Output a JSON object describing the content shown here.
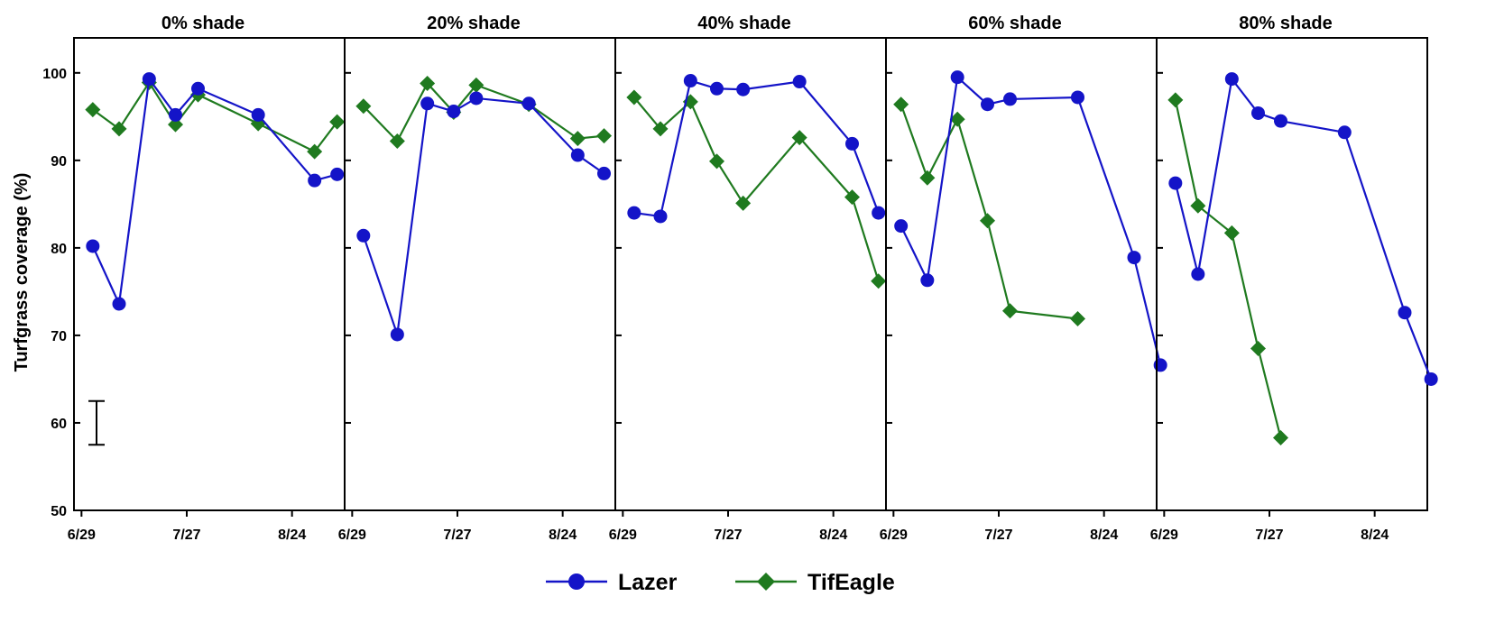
{
  "chart_data": {
    "type": "line",
    "ylabel": "Turfgrass coverage (%)",
    "ylim": [
      50,
      104
    ],
    "yticks": [
      50,
      60,
      70,
      80,
      90,
      100
    ],
    "xticks": [
      "6/29",
      "7/27",
      "8/24"
    ],
    "xlim": [
      "2019-06-27",
      "2019-09-07"
    ],
    "error_bar": {
      "x": "2019-07-03",
      "low": 57.5,
      "high": 62.5
    },
    "colors": {
      "Lazer": "#1414c8",
      "TifEagle": "#1f7a1f"
    },
    "markers": {
      "Lazer": "circle",
      "TifEagle": "diamond"
    },
    "legend": {
      "position": "bottom-center",
      "entries": [
        "Lazer",
        "TifEagle"
      ]
    },
    "panels": [
      {
        "title": "0% shade",
        "series": [
          {
            "name": "Lazer",
            "points": [
              [
                "2019-07-02",
                80.2
              ],
              [
                "2019-07-09",
                73.6
              ],
              [
                "2019-07-17",
                99.3
              ],
              [
                "2019-07-24",
                95.2
              ],
              [
                "2019-07-30",
                98.2
              ],
              [
                "2019-08-15",
                95.2
              ],
              [
                "2019-08-30",
                87.7
              ],
              [
                "2019-09-05",
                88.4
              ]
            ]
          },
          {
            "name": "TifEagle",
            "points": [
              [
                "2019-07-02",
                95.8
              ],
              [
                "2019-07-09",
                93.6
              ],
              [
                "2019-07-17",
                98.9
              ],
              [
                "2019-07-24",
                94.1
              ],
              [
                "2019-07-30",
                97.5
              ],
              [
                "2019-08-15",
                94.2
              ],
              [
                "2019-08-30",
                91.0
              ],
              [
                "2019-09-05",
                94.4
              ]
            ]
          }
        ]
      },
      {
        "title": "20% shade",
        "series": [
          {
            "name": "Lazer",
            "points": [
              [
                "2019-07-02",
                81.4
              ],
              [
                "2019-07-11",
                70.1
              ],
              [
                "2019-07-19",
                96.5
              ],
              [
                "2019-07-26",
                95.6
              ],
              [
                "2019-08-01",
                97.1
              ],
              [
                "2019-08-15",
                96.5
              ],
              [
                "2019-08-28",
                90.6
              ],
              [
                "2019-09-04",
                88.5
              ]
            ]
          },
          {
            "name": "TifEagle",
            "points": [
              [
                "2019-07-02",
                96.2
              ],
              [
                "2019-07-11",
                92.2
              ],
              [
                "2019-07-19",
                98.8
              ],
              [
                "2019-07-26",
                95.5
              ],
              [
                "2019-08-01",
                98.6
              ],
              [
                "2019-08-15",
                96.4
              ],
              [
                "2019-08-28",
                92.5
              ],
              [
                "2019-09-04",
                92.8
              ]
            ]
          }
        ]
      },
      {
        "title": "40% shade",
        "series": [
          {
            "name": "Lazer",
            "points": [
              [
                "2019-07-02",
                84.0
              ],
              [
                "2019-07-09",
                83.6
              ],
              [
                "2019-07-17",
                99.1
              ],
              [
                "2019-07-24",
                98.2
              ],
              [
                "2019-07-31",
                98.1
              ],
              [
                "2019-08-15",
                99.0
              ],
              [
                "2019-08-29",
                91.9
              ],
              [
                "2019-09-05",
                84.0
              ]
            ]
          },
          {
            "name": "TifEagle",
            "points": [
              [
                "2019-07-02",
                97.2
              ],
              [
                "2019-07-09",
                93.6
              ],
              [
                "2019-07-17",
                96.7
              ],
              [
                "2019-07-24",
                89.9
              ],
              [
                "2019-07-31",
                85.1
              ],
              [
                "2019-08-15",
                92.6
              ],
              [
                "2019-08-29",
                85.8
              ],
              [
                "2019-09-05",
                76.2
              ]
            ]
          }
        ]
      },
      {
        "title": "60% shade",
        "series": [
          {
            "name": "Lazer",
            "points": [
              [
                "2019-07-01",
                82.5
              ],
              [
                "2019-07-08",
                76.3
              ],
              [
                "2019-07-16",
                99.5
              ],
              [
                "2019-07-24",
                96.4
              ],
              [
                "2019-07-30",
                97.0
              ],
              [
                "2019-08-17",
                97.2
              ],
              [
                "2019-09-01",
                78.9
              ],
              [
                "2019-09-08",
                66.6
              ]
            ]
          },
          {
            "name": "TifEagle",
            "points": [
              [
                "2019-07-01",
                96.4
              ],
              [
                "2019-07-08",
                88.0
              ],
              [
                "2019-07-16",
                94.7
              ],
              [
                "2019-07-24",
                83.1
              ],
              [
                "2019-07-30",
                72.8
              ],
              [
                "2019-08-17",
                71.9
              ]
            ]
          }
        ]
      },
      {
        "title": "80% shade",
        "series": [
          {
            "name": "Lazer",
            "points": [
              [
                "2019-07-02",
                87.4
              ],
              [
                "2019-07-08",
                77.0
              ],
              [
                "2019-07-17",
                99.3
              ],
              [
                "2019-07-24",
                95.4
              ],
              [
                "2019-07-30",
                94.5
              ],
              [
                "2019-08-16",
                93.2
              ],
              [
                "2019-09-01",
                72.6
              ],
              [
                "2019-09-08",
                65.0
              ]
            ]
          },
          {
            "name": "TifEagle",
            "points": [
              [
                "2019-07-02",
                96.9
              ],
              [
                "2019-07-08",
                84.8
              ],
              [
                "2019-07-17",
                81.7
              ],
              [
                "2019-07-24",
                68.5
              ],
              [
                "2019-07-30",
                58.3
              ]
            ]
          }
        ]
      }
    ]
  }
}
